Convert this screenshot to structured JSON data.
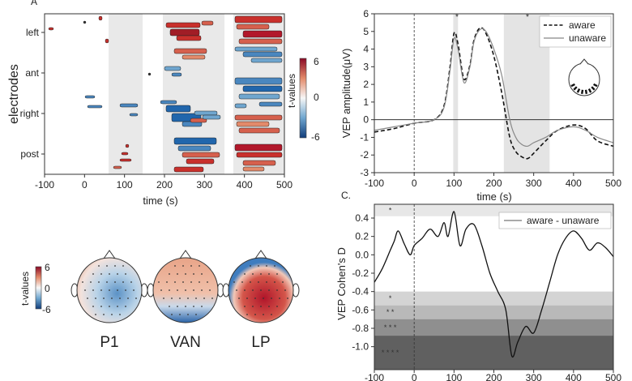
{
  "panel_a": {
    "letter": "A",
    "ylabel": "electrodes",
    "xlabel": "time (s)",
    "y_tick_labels": [
      "left",
      "ant",
      "right",
      "post"
    ],
    "x_ticks": [
      "-100",
      "0",
      "100",
      "200",
      "300",
      "400",
      "500"
    ],
    "colorbar": {
      "label": "t-values",
      "ticks": [
        "6",
        "0",
        "-6"
      ],
      "colors": {
        "pos": "#b2182b",
        "mid": "#f7f7f7",
        "neg": "#2166ac"
      }
    }
  },
  "topomaps": {
    "colorbar": {
      "label": "t-values",
      "ticks": [
        "6",
        "0",
        "-6"
      ]
    },
    "names": [
      "P1",
      "VAN",
      "LP"
    ]
  },
  "chart_data": [
    {
      "type": "line",
      "panel": "B",
      "ylabel": "VEP amplitude(μV)",
      "xlabel": "time (s)",
      "xlim": [
        -100,
        500
      ],
      "ylim": [
        -3,
        6
      ],
      "x_ticks": [
        "-100",
        "0",
        "100",
        "200",
        "300",
        "400",
        "500"
      ],
      "y_ticks": [
        "6",
        "5",
        "4",
        "3",
        "2",
        "1",
        "0",
        "-1",
        "-2",
        "-3"
      ],
      "shaded_windows": [
        [
          98,
          110
        ],
        [
          225,
          340
        ]
      ],
      "markers": [
        "*",
        "*"
      ],
      "legend": [
        "aware",
        "unaware"
      ],
      "x": [
        -100,
        -50,
        0,
        50,
        75,
        90,
        100,
        110,
        125,
        140,
        150,
        165,
        180,
        200,
        220,
        240,
        255,
        270,
        285,
        300,
        330,
        360,
        400,
        430,
        460,
        500
      ],
      "series": [
        {
          "name": "aware",
          "values": [
            -0.7,
            -0.5,
            -0.2,
            0.0,
            0.8,
            3.0,
            4.9,
            4.3,
            2.3,
            3.1,
            4.5,
            5.2,
            4.9,
            3.6,
            1.5,
            -1.0,
            -1.8,
            -2.1,
            -2.2,
            -1.9,
            -1.2,
            -0.6,
            -0.3,
            -0.5,
            -1.2,
            -1.5
          ]
        },
        {
          "name": "unaware",
          "values": [
            -0.6,
            -0.4,
            -0.2,
            0.0,
            0.7,
            2.8,
            4.6,
            4.0,
            2.1,
            3.0,
            4.4,
            5.1,
            5.0,
            4.0,
            2.5,
            0.0,
            -1.0,
            -1.4,
            -1.5,
            -1.3,
            -1.0,
            -0.6,
            -0.4,
            -0.6,
            -1.0,
            -1.3
          ]
        }
      ]
    },
    {
      "type": "line",
      "panel": "C",
      "letter": "C.",
      "ylabel": "VEP Cohen's D",
      "xlabel": "",
      "xlim": [
        -100,
        500
      ],
      "ylim": [
        -1.25,
        0.55
      ],
      "x_ticks": [
        "-100",
        "0",
        "100",
        "200",
        "300",
        "400",
        "500"
      ],
      "y_ticks": [
        "0.4",
        "0.2",
        "0.0",
        "-0.2",
        "-0.4",
        "-0.6",
        "-0.8",
        "-1.0"
      ],
      "bands": [
        {
          "from": 0.42,
          "to": 0.55,
          "label": "*"
        },
        {
          "from": -0.55,
          "to": -0.4,
          "label": "*"
        },
        {
          "from": -0.7,
          "to": -0.55,
          "label": "* *"
        },
        {
          "from": -0.88,
          "to": -0.7,
          "label": "* * *"
        },
        {
          "from": -1.25,
          "to": -0.88,
          "label": "* * * *"
        }
      ],
      "legend": [
        "aware - unaware"
      ],
      "x": [
        -100,
        -80,
        -60,
        -50,
        -40,
        -25,
        -10,
        0,
        20,
        40,
        60,
        75,
        85,
        100,
        115,
        130,
        150,
        170,
        190,
        210,
        230,
        245,
        260,
        280,
        300,
        320,
        340,
        360,
        380,
        400,
        420,
        440,
        460,
        480,
        500
      ],
      "series": [
        {
          "name": "aware - unaware",
          "values": [
            -0.3,
            -0.15,
            0.05,
            0.15,
            0.26,
            0.12,
            0.0,
            0.1,
            0.18,
            0.28,
            0.2,
            0.35,
            0.2,
            0.47,
            0.1,
            0.28,
            0.33,
            0.1,
            -0.2,
            -0.4,
            -0.6,
            -1.1,
            -0.95,
            -0.78,
            -0.85,
            -0.6,
            -0.3,
            0.0,
            0.18,
            0.26,
            0.18,
            0.05,
            0.13,
            0.08,
            -0.02
          ]
        }
      ]
    }
  ]
}
